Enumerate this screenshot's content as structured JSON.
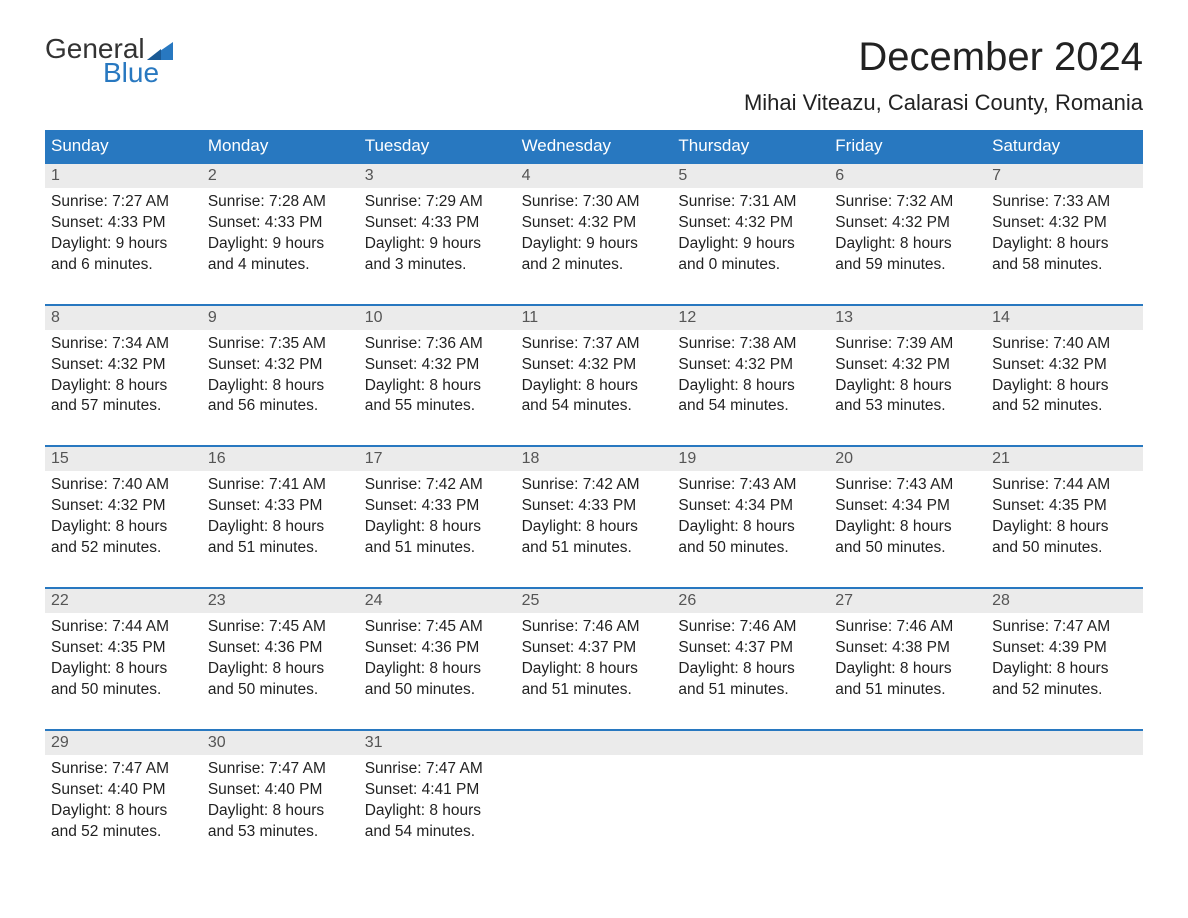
{
  "logo": {
    "text_general": "General",
    "text_blue": "Blue",
    "flag_color": "#2878c0",
    "text_dark": "#333333"
  },
  "title": "December 2024",
  "location": "Mihai Viteazu, Calarasi County, Romania",
  "colors": {
    "header_bg": "#2878c0",
    "header_text": "#ffffff",
    "daynum_bg": "#ebebeb",
    "daynum_text": "#555555",
    "body_text": "#222222",
    "page_bg": "#ffffff"
  },
  "fonts": {
    "title_size": 40,
    "location_size": 22,
    "weekday_size": 17,
    "daynum_size": 16,
    "cell_size": 15.5
  },
  "layout": {
    "columns": 7,
    "weeks": 5
  },
  "weekdays": [
    "Sunday",
    "Monday",
    "Tuesday",
    "Wednesday",
    "Thursday",
    "Friday",
    "Saturday"
  ],
  "labels": {
    "sunrise": "Sunrise:",
    "sunset": "Sunset:",
    "daylight": "Daylight:"
  },
  "weeks": [
    {
      "days": [
        {
          "num": "1",
          "sunrise": "7:27 AM",
          "sunset": "4:33 PM",
          "daylight_l1": "9 hours",
          "daylight_l2": "and 6 minutes."
        },
        {
          "num": "2",
          "sunrise": "7:28 AM",
          "sunset": "4:33 PM",
          "daylight_l1": "9 hours",
          "daylight_l2": "and 4 minutes."
        },
        {
          "num": "3",
          "sunrise": "7:29 AM",
          "sunset": "4:33 PM",
          "daylight_l1": "9 hours",
          "daylight_l2": "and 3 minutes."
        },
        {
          "num": "4",
          "sunrise": "7:30 AM",
          "sunset": "4:32 PM",
          "daylight_l1": "9 hours",
          "daylight_l2": "and 2 minutes."
        },
        {
          "num": "5",
          "sunrise": "7:31 AM",
          "sunset": "4:32 PM",
          "daylight_l1": "9 hours",
          "daylight_l2": "and 0 minutes."
        },
        {
          "num": "6",
          "sunrise": "7:32 AM",
          "sunset": "4:32 PM",
          "daylight_l1": "8 hours",
          "daylight_l2": "and 59 minutes."
        },
        {
          "num": "7",
          "sunrise": "7:33 AM",
          "sunset": "4:32 PM",
          "daylight_l1": "8 hours",
          "daylight_l2": "and 58 minutes."
        }
      ]
    },
    {
      "days": [
        {
          "num": "8",
          "sunrise": "7:34 AM",
          "sunset": "4:32 PM",
          "daylight_l1": "8 hours",
          "daylight_l2": "and 57 minutes."
        },
        {
          "num": "9",
          "sunrise": "7:35 AM",
          "sunset": "4:32 PM",
          "daylight_l1": "8 hours",
          "daylight_l2": "and 56 minutes."
        },
        {
          "num": "10",
          "sunrise": "7:36 AM",
          "sunset": "4:32 PM",
          "daylight_l1": "8 hours",
          "daylight_l2": "and 55 minutes."
        },
        {
          "num": "11",
          "sunrise": "7:37 AM",
          "sunset": "4:32 PM",
          "daylight_l1": "8 hours",
          "daylight_l2": "and 54 minutes."
        },
        {
          "num": "12",
          "sunrise": "7:38 AM",
          "sunset": "4:32 PM",
          "daylight_l1": "8 hours",
          "daylight_l2": "and 54 minutes."
        },
        {
          "num": "13",
          "sunrise": "7:39 AM",
          "sunset": "4:32 PM",
          "daylight_l1": "8 hours",
          "daylight_l2": "and 53 minutes."
        },
        {
          "num": "14",
          "sunrise": "7:40 AM",
          "sunset": "4:32 PM",
          "daylight_l1": "8 hours",
          "daylight_l2": "and 52 minutes."
        }
      ]
    },
    {
      "days": [
        {
          "num": "15",
          "sunrise": "7:40 AM",
          "sunset": "4:32 PM",
          "daylight_l1": "8 hours",
          "daylight_l2": "and 52 minutes."
        },
        {
          "num": "16",
          "sunrise": "7:41 AM",
          "sunset": "4:33 PM",
          "daylight_l1": "8 hours",
          "daylight_l2": "and 51 minutes."
        },
        {
          "num": "17",
          "sunrise": "7:42 AM",
          "sunset": "4:33 PM",
          "daylight_l1": "8 hours",
          "daylight_l2": "and 51 minutes."
        },
        {
          "num": "18",
          "sunrise": "7:42 AM",
          "sunset": "4:33 PM",
          "daylight_l1": "8 hours",
          "daylight_l2": "and 51 minutes."
        },
        {
          "num": "19",
          "sunrise": "7:43 AM",
          "sunset": "4:34 PM",
          "daylight_l1": "8 hours",
          "daylight_l2": "and 50 minutes."
        },
        {
          "num": "20",
          "sunrise": "7:43 AM",
          "sunset": "4:34 PM",
          "daylight_l1": "8 hours",
          "daylight_l2": "and 50 minutes."
        },
        {
          "num": "21",
          "sunrise": "7:44 AM",
          "sunset": "4:35 PM",
          "daylight_l1": "8 hours",
          "daylight_l2": "and 50 minutes."
        }
      ]
    },
    {
      "days": [
        {
          "num": "22",
          "sunrise": "7:44 AM",
          "sunset": "4:35 PM",
          "daylight_l1": "8 hours",
          "daylight_l2": "and 50 minutes."
        },
        {
          "num": "23",
          "sunrise": "7:45 AM",
          "sunset": "4:36 PM",
          "daylight_l1": "8 hours",
          "daylight_l2": "and 50 minutes."
        },
        {
          "num": "24",
          "sunrise": "7:45 AM",
          "sunset": "4:36 PM",
          "daylight_l1": "8 hours",
          "daylight_l2": "and 50 minutes."
        },
        {
          "num": "25",
          "sunrise": "7:46 AM",
          "sunset": "4:37 PM",
          "daylight_l1": "8 hours",
          "daylight_l2": "and 51 minutes."
        },
        {
          "num": "26",
          "sunrise": "7:46 AM",
          "sunset": "4:37 PM",
          "daylight_l1": "8 hours",
          "daylight_l2": "and 51 minutes."
        },
        {
          "num": "27",
          "sunrise": "7:46 AM",
          "sunset": "4:38 PM",
          "daylight_l1": "8 hours",
          "daylight_l2": "and 51 minutes."
        },
        {
          "num": "28",
          "sunrise": "7:47 AM",
          "sunset": "4:39 PM",
          "daylight_l1": "8 hours",
          "daylight_l2": "and 52 minutes."
        }
      ]
    },
    {
      "days": [
        {
          "num": "29",
          "sunrise": "7:47 AM",
          "sunset": "4:40 PM",
          "daylight_l1": "8 hours",
          "daylight_l2": "and 52 minutes."
        },
        {
          "num": "30",
          "sunrise": "7:47 AM",
          "sunset": "4:40 PM",
          "daylight_l1": "8 hours",
          "daylight_l2": "and 53 minutes."
        },
        {
          "num": "31",
          "sunrise": "7:47 AM",
          "sunset": "4:41 PM",
          "daylight_l1": "8 hours",
          "daylight_l2": "and 54 minutes."
        },
        null,
        null,
        null,
        null
      ]
    }
  ]
}
